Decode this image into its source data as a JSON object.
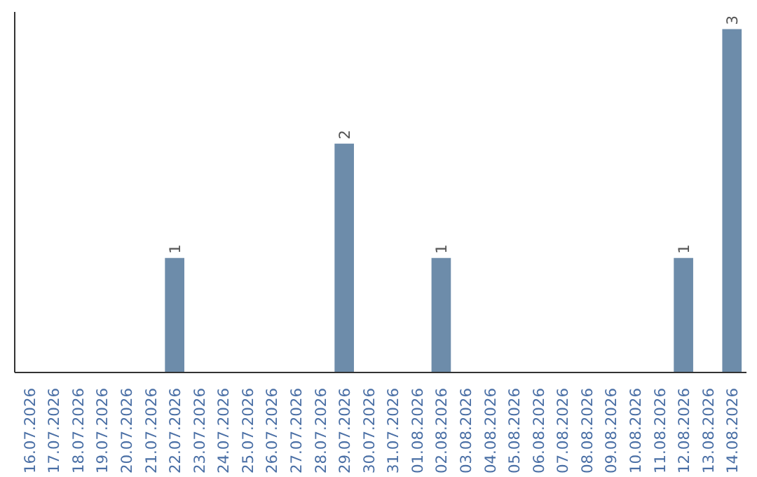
{
  "chart_data": {
    "type": "bar",
    "categories": [
      "16.07.2026",
      "17.07.2026",
      "18.07.2026",
      "19.07.2026",
      "20.07.2026",
      "21.07.2026",
      "22.07.2026",
      "23.07.2026",
      "24.07.2026",
      "25.07.2026",
      "26.07.2026",
      "27.07.2026",
      "28.07.2026",
      "29.07.2026",
      "30.07.2026",
      "31.07.2026",
      "01.08.2026",
      "02.08.2026",
      "03.08.2026",
      "04.08.2026",
      "05.08.2026",
      "06.08.2026",
      "07.08.2026",
      "08.08.2026",
      "09.08.2026",
      "10.08.2026",
      "11.08.2026",
      "12.08.2026",
      "13.08.2026",
      "14.08.2026"
    ],
    "values": [
      0,
      0,
      0,
      0,
      0,
      0,
      1,
      0,
      0,
      0,
      0,
      0,
      0,
      2,
      0,
      0,
      0,
      1,
      0,
      0,
      0,
      0,
      0,
      0,
      0,
      0,
      0,
      1,
      0,
      3
    ],
    "value_labels": [
      null,
      null,
      null,
      null,
      null,
      null,
      "1",
      null,
      null,
      null,
      null,
      null,
      null,
      "2",
      null,
      null,
      null,
      "1",
      null,
      null,
      null,
      null,
      null,
      null,
      null,
      null,
      null,
      "1",
      null,
      "3"
    ],
    "color": "#6d8caa",
    "ylim": [
      0,
      3.15
    ],
    "tick_labels": "x",
    "grid": false
  }
}
